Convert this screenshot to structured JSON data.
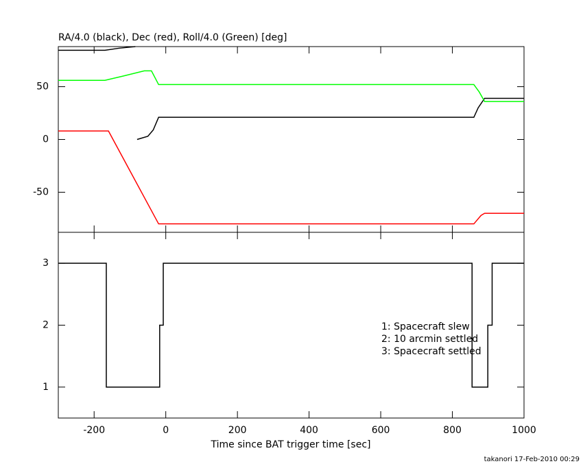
{
  "chart_data": [
    {
      "type": "line",
      "title": "RA/4.0 (black), Dec (red), Roll/4.0 (Green) [deg]",
      "xlim": [
        -300,
        1000
      ],
      "xticks": [
        -200,
        0,
        200,
        400,
        600,
        800,
        1000
      ],
      "ylim": [
        -88,
        88
      ],
      "yticks": [
        -50,
        0,
        50
      ],
      "series": [
        {
          "color": "#000000",
          "x": [
            -300,
            -170,
            -130,
            -85,
            -85,
            -80,
            -50,
            -35,
            -20,
            860,
            872,
            890,
            1000
          ],
          "values": [
            84.5,
            84.5,
            86.5,
            88,
            null,
            0,
            3,
            9,
            21,
            21,
            30,
            39,
            39
          ]
        },
        {
          "color": "#00ff00",
          "x": [
            -300,
            -170,
            -120,
            -60,
            -40,
            -20,
            860,
            875,
            890,
            1000
          ],
          "values": [
            56,
            56,
            60,
            65,
            65,
            52,
            52,
            45,
            36,
            36
          ]
        },
        {
          "color": "#ff0000",
          "x": [
            -300,
            -160,
            -20,
            860,
            880,
            890,
            1000
          ],
          "values": [
            8,
            8,
            -80,
            -80,
            -72,
            -70,
            -70
          ]
        }
      ]
    },
    {
      "type": "step",
      "xlabel": "Time since BAT trigger time [sec]",
      "xlim": [
        -300,
        1000
      ],
      "xticks": [
        -200,
        0,
        200,
        400,
        600,
        800,
        1000
      ],
      "ylim": [
        0.5,
        3.5
      ],
      "yticks": [
        1,
        2,
        3
      ],
      "series": [
        {
          "color": "#000000",
          "x": [
            -300,
            -166,
            -166,
            -17,
            -17,
            -7,
            -7,
            855,
            855,
            899,
            899,
            911,
            911,
            1000
          ],
          "values": [
            3,
            3,
            1,
            1,
            2,
            2,
            3,
            3,
            1,
            1,
            2,
            2,
            3,
            3
          ]
        }
      ],
      "annotations": [
        "1: Spacecraft slew",
        "2: 10 arcmin settled",
        "3: Spacecraft settled"
      ],
      "footer": "takanori 17-Feb-2010 00:29"
    }
  ]
}
